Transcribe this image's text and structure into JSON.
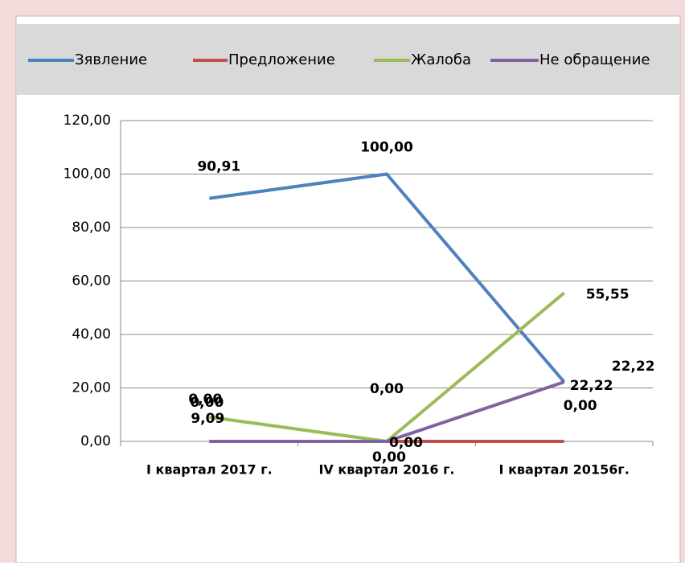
{
  "chart_data": {
    "type": "line",
    "categories": [
      "I квартал 2017 г.",
      "IV  квартал 2016 г.",
      "I квартал 20156г."
    ],
    "series": [
      {
        "name": "Зявление",
        "color": "#4f81bd",
        "values": [
          90.91,
          100,
          22.22
        ],
        "value_labels": [
          "90,91",
          "100,00",
          "22,22"
        ]
      },
      {
        "name": "Предложение",
        "color": "#c0504d",
        "values": [
          0,
          0,
          0
        ],
        "value_labels": [
          "0,00",
          "0,00",
          "0,00"
        ]
      },
      {
        "name": "Жалоба",
        "color": "#9bbb59",
        "values": [
          9.09,
          0,
          55.55
        ],
        "value_labels": [
          "9,09",
          "0,00",
          "55,55"
        ]
      },
      {
        "name": "Не обращение",
        "color": "#8064a2",
        "values": [
          0,
          0,
          22.22
        ],
        "value_labels": [
          "0,00",
          "0,00",
          "22,22"
        ]
      }
    ],
    "ylim": [
      0,
      120
    ],
    "yticks": [
      {
        "value": 0,
        "label": "0,00"
      },
      {
        "value": 20,
        "label": "20,00"
      },
      {
        "value": 40,
        "label": "40,00"
      },
      {
        "value": 60,
        "label": "60,00"
      },
      {
        "value": 80,
        "label": "80,00"
      },
      {
        "value": 100,
        "label": "100,00"
      },
      {
        "value": 120,
        "label": "120,00"
      }
    ],
    "grid": true,
    "legend": "top"
  }
}
